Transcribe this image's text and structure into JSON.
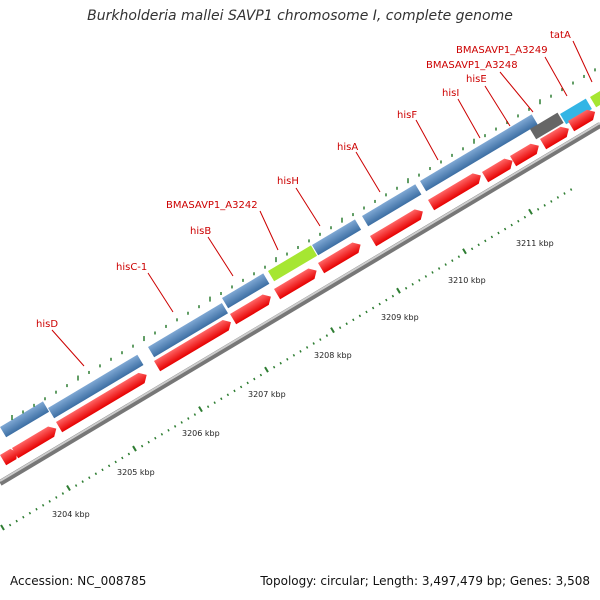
{
  "title": "Burkholderia mallei SAVP1 chromosome I, complete genome",
  "footer": {
    "accession": "Accession: NC_008785",
    "summary": "Topology: circular; Length: 3,497,479 bp; Genes: 3,508"
  },
  "colors": {
    "cds": "#ff1a1a",
    "gene": "#4a7fb5",
    "backbone": "#999999",
    "label": "#cc0000",
    "tick": "#2e7d32",
    "lime": "#a6e632",
    "gray": "#666666",
    "cyan": "#33b5e5"
  },
  "ticks": [
    {
      "label": "3204 kbp"
    },
    {
      "label": "3205 kbp"
    },
    {
      "label": "3206 kbp"
    },
    {
      "label": "3207 kbp"
    },
    {
      "label": "3208 kbp"
    },
    {
      "label": "3209 kbp"
    },
    {
      "label": "3210 kbp"
    },
    {
      "label": "3211 kbp"
    }
  ],
  "gene_labels": [
    {
      "text": "hisD"
    },
    {
      "text": "hisC-1"
    },
    {
      "text": "hisB"
    },
    {
      "text": "BMASAVP1_A3242"
    },
    {
      "text": "hisH"
    },
    {
      "text": "hisA"
    },
    {
      "text": "hisF"
    },
    {
      "text": "hisI"
    },
    {
      "text": "hisE"
    },
    {
      "text": "BMASAVP1_A3248"
    },
    {
      "text": "BMASAVP1_A3249"
    },
    {
      "text": "tatA"
    }
  ]
}
